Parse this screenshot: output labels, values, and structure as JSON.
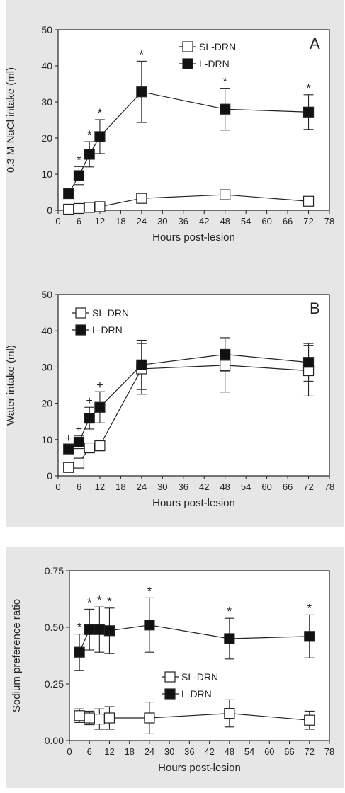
{
  "chart_data": [
    {
      "type": "line",
      "panel_letter": "A",
      "ylabel": "0.3 M NaCl intake (ml)",
      "xlabel": "Hours  post-lesion",
      "xlim": [
        0,
        78
      ],
      "ylim": [
        0,
        50
      ],
      "xticks": [
        "0",
        "6",
        "12",
        "18",
        "24",
        "30",
        "36",
        "42",
        "48",
        "54",
        "60",
        "66",
        "72",
        "78"
      ],
      "yticks": [
        "0",
        "10",
        "20",
        "30",
        "40",
        "50"
      ],
      "legend_position": "top-right",
      "series": [
        {
          "name": "SL-DRN",
          "marker": "open-square",
          "x": [
            3,
            6,
            9,
            12,
            24,
            48,
            72
          ],
          "y": [
            0.3,
            0.5,
            0.8,
            1.0,
            3.3,
            4.3,
            2.5
          ],
          "err": [
            0.3,
            0.4,
            0.5,
            0.5,
            1.0,
            1.0,
            0.6
          ],
          "sig": [
            "",
            "",
            "",
            "",
            "",
            "",
            ""
          ]
        },
        {
          "name": "L-DRN",
          "marker": "filled-square",
          "x": [
            3,
            6,
            9,
            12,
            24,
            48,
            72
          ],
          "y": [
            4.6,
            9.6,
            15.5,
            20.4,
            32.8,
            28.0,
            27.2
          ],
          "err": [
            1.0,
            2.5,
            3.5,
            4.7,
            8.5,
            5.8,
            4.8
          ],
          "sig": [
            "",
            "*",
            "*",
            "*",
            "*",
            "*",
            "*"
          ]
        }
      ]
    },
    {
      "type": "line",
      "panel_letter": "B",
      "ylabel": "Water intake (ml)",
      "xlabel": "Hours  post-lesion",
      "xlim": [
        0,
        78
      ],
      "ylim": [
        0,
        50
      ],
      "xticks": [
        "0",
        "6",
        "12",
        "18",
        "24",
        "30",
        "36",
        "42",
        "48",
        "54",
        "60",
        "66",
        "72",
        "78"
      ],
      "yticks": [
        "0",
        "10",
        "20",
        "30",
        "40",
        "50"
      ],
      "legend_position": "top-left",
      "series": [
        {
          "name": "SL-DRN",
          "marker": "open-square",
          "x": [
            3,
            6,
            9,
            12,
            24,
            48,
            72
          ],
          "y": [
            2.3,
            3.5,
            7.7,
            8.3,
            29.5,
            30.5,
            29.0
          ],
          "err": [
            0.6,
            0.8,
            1.2,
            1.4,
            7.0,
            7.4,
            7.0
          ],
          "sig": [
            "",
            "",
            "",
            "",
            "",
            "",
            ""
          ]
        },
        {
          "name": "L-DRN",
          "marker": "filled-square",
          "x": [
            3,
            6,
            9,
            12,
            24,
            48,
            72
          ],
          "y": [
            7.4,
            9.3,
            15.9,
            18.9,
            30.6,
            33.5,
            31.3
          ],
          "err": [
            1.2,
            1.8,
            3.0,
            4.3,
            6.8,
            4.6,
            5.2
          ],
          "sig": [
            "+",
            "+",
            "+",
            "+",
            "",
            "",
            ""
          ]
        }
      ]
    },
    {
      "type": "line",
      "panel_letter": "",
      "ylabel": "Sodium preference ratio",
      "xlabel": "Hours  post-lesion",
      "xlim": [
        0,
        78
      ],
      "ylim": [
        0,
        0.75
      ],
      "xticks": [
        "0",
        "6",
        "12",
        "18",
        "24",
        "30",
        "36",
        "42",
        "48",
        "54",
        "60",
        "66",
        "72",
        "78"
      ],
      "yticks": [
        "0.00",
        "0.25",
        "0.50",
        "0.75"
      ],
      "legend_position": "center",
      "series": [
        {
          "name": "SL-DRN",
          "marker": "open-square",
          "x": [
            3,
            6,
            9,
            12,
            24,
            48,
            72
          ],
          "y": [
            0.11,
            0.1,
            0.095,
            0.1,
            0.1,
            0.12,
            0.09
          ],
          "err": [
            0.03,
            0.03,
            0.045,
            0.05,
            0.07,
            0.06,
            0.04
          ],
          "sig": [
            "",
            "",
            "",
            "",
            "",
            "",
            ""
          ]
        },
        {
          "name": "L-DRN",
          "marker": "filled-square",
          "x": [
            3,
            6,
            9,
            12,
            24,
            48,
            72
          ],
          "y": [
            0.39,
            0.49,
            0.49,
            0.485,
            0.51,
            0.45,
            0.46
          ],
          "err": [
            0.08,
            0.09,
            0.1,
            0.1,
            0.12,
            0.09,
            0.095
          ],
          "sig": [
            "*",
            "*",
            "*",
            "*",
            "*",
            "*",
            "*"
          ]
        }
      ]
    }
  ]
}
